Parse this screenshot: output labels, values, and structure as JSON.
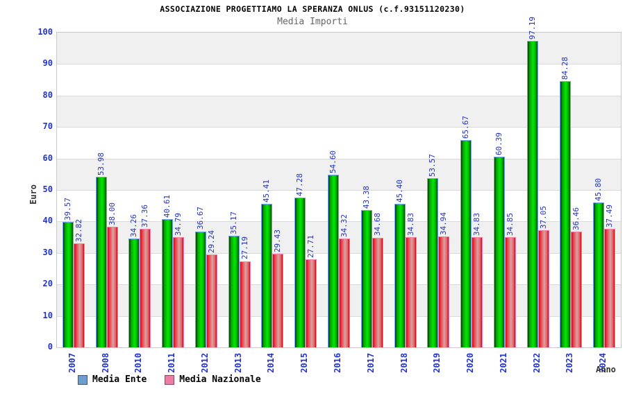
{
  "chart_data": {
    "type": "bar",
    "title": "ASSOCIAZIONE PROGETTIAMO LA SPERANZA ONLUS (c.f.93151120230)",
    "subtitle": "Media Importi",
    "xlabel": "Anno",
    "ylabel": "Euro",
    "ylim": [
      0,
      100
    ],
    "ytick_step": 10,
    "yticks": [
      0,
      10,
      20,
      30,
      40,
      50,
      60,
      70,
      80,
      90,
      100
    ],
    "grid": "horizontal-bands-alternating-gray-white",
    "legend_position": "bottom-left",
    "categories": [
      "2007",
      "2008",
      "2010",
      "2011",
      "2012",
      "2013",
      "2014",
      "2015",
      "2016",
      "2017",
      "2018",
      "2019",
      "2020",
      "2021",
      "2022",
      "2023",
      "2024"
    ],
    "series": [
      {
        "name": "Media Ente",
        "bar_color": "#00cc00",
        "bar_border_color": "#74a7e8",
        "legend_swatch_color": "#6d9ece",
        "values": [
          39.57,
          53.98,
          34.26,
          40.61,
          36.67,
          35.17,
          45.41,
          47.28,
          54.6,
          43.38,
          45.4,
          53.57,
          65.67,
          60.39,
          97.19,
          84.28,
          45.8
        ],
        "value_labels": [
          "39.57",
          "53.98",
          "34.26",
          "40.61",
          "36.67",
          "35.17",
          "45.41",
          "47.28",
          "54.60",
          "43.38",
          "45.40",
          "53.57",
          "65.67",
          "60.39",
          "97.19",
          "84.28",
          "45.80"
        ]
      },
      {
        "name": "Media Nazionale",
        "bar_color": "#e8323c",
        "bar_border_color": "#f583ae",
        "legend_swatch_color": "#ee7ba4",
        "values": [
          32.82,
          38.0,
          37.36,
          34.79,
          29.24,
          27.19,
          29.43,
          27.71,
          34.32,
          34.68,
          34.83,
          34.94,
          34.83,
          34.85,
          37.05,
          36.46,
          37.49
        ],
        "value_labels": [
          "32.82",
          "38.00",
          "37.36",
          "34.79",
          "29.24",
          "27.19",
          "29.43",
          "27.71",
          "34.32",
          "34.68",
          "34.83",
          "34.94",
          "34.83",
          "34.85",
          "37.05",
          "36.46",
          "37.49"
        ]
      }
    ],
    "colors": {
      "tick_label_blue": "#2233cc",
      "value_label_blue": "#2233bb",
      "axis_title_gray": "#333333",
      "subtitle_gray": "#666666",
      "band_gray": "#f0f0f0",
      "gridline": "#d9d9d9",
      "plot_border": "#c9c9c9",
      "background": "#ffffff"
    }
  }
}
